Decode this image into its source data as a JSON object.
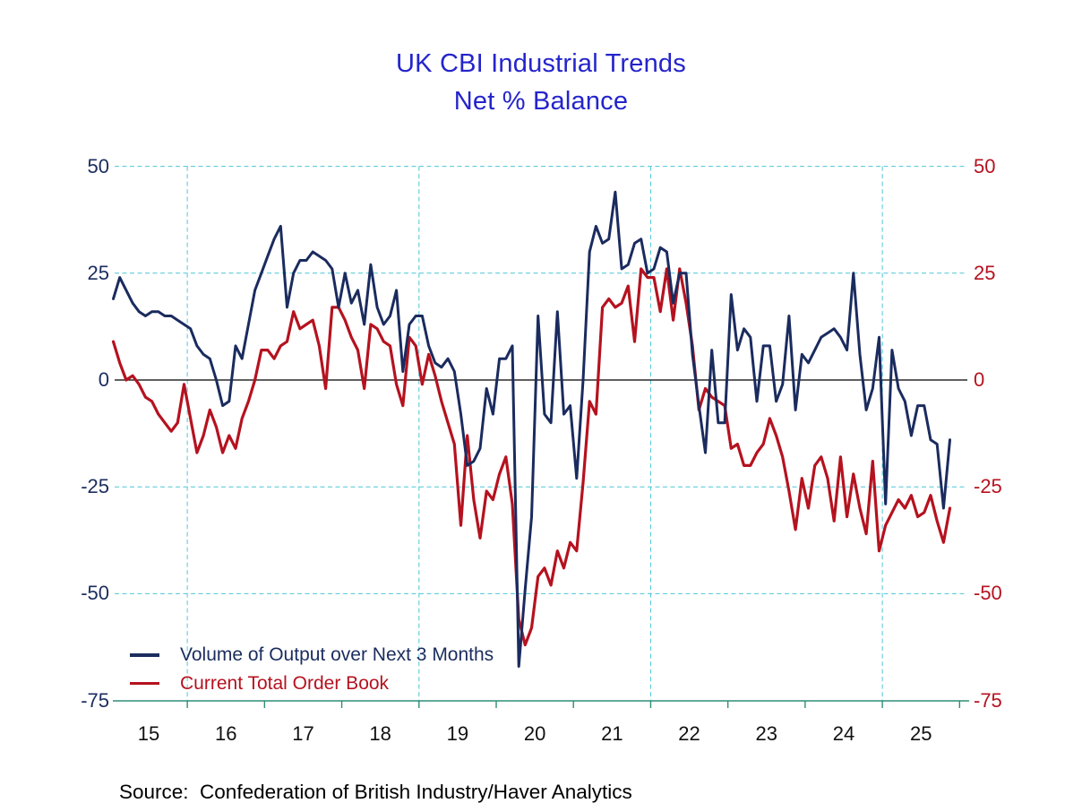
{
  "title": {
    "line1": "UK CBI Industrial Trends",
    "line2": "Net % Balance",
    "color": "#2424cc"
  },
  "source_line": "Source:  Confederation of British Industry/Haver Analytics",
  "legend": {
    "items": [
      {
        "label": "Volume of Output over Next 3 Months",
        "color": "#1b2d5e"
      },
      {
        "label": "Current Total Order Book",
        "color": "#b5121f"
      }
    ]
  },
  "chart_data": {
    "type": "line",
    "title": "UK CBI Industrial Trends",
    "subtitle": "Net % Balance",
    "frequency": "monthly",
    "x_start": "2015-01",
    "x_end": "2025-11",
    "x_tick_labels": [
      "15",
      "16",
      "17",
      "18",
      "19",
      "20",
      "21",
      "22",
      "23",
      "24",
      "25"
    ],
    "y_ticks": [
      50,
      25,
      0,
      -25,
      -50,
      -75
    ],
    "ylim": [
      -75,
      50
    ],
    "grid": {
      "h_dashed_at": [
        50,
        25,
        -25,
        -50
      ],
      "v_dashed_at_year_starts": [
        2016,
        2019,
        2022,
        2025
      ],
      "zero_line": true,
      "gridline_color": "#4ec6d8",
      "zero_line_color": "#000000",
      "baseline_color": "#2f8d77"
    },
    "axis_colors": {
      "left_labels": "#1b2d5e",
      "right_labels": "#b5121f",
      "x_labels": "#111111"
    },
    "series": [
      {
        "name": "Volume of Output over Next 3 Months",
        "color": "#1a2b5e",
        "width": 3,
        "values": [
          19,
          24,
          21,
          18,
          16,
          15,
          16,
          16,
          15,
          15,
          14,
          13,
          12,
          8,
          6,
          5,
          0,
          -6,
          -5,
          8,
          5,
          13,
          21,
          25,
          29,
          33,
          36,
          17,
          25,
          28,
          28,
          30,
          29,
          28,
          26,
          17,
          25,
          18,
          21,
          13,
          27,
          17,
          13,
          15,
          21,
          2,
          13,
          15,
          15,
          8,
          4,
          3,
          5,
          2,
          -8,
          -20,
          -19,
          -16,
          -2,
          -8,
          5,
          5,
          8,
          -67,
          -49,
          -32,
          15,
          -8,
          -10,
          16,
          -8,
          -6,
          -23,
          0,
          30,
          36,
          32,
          33,
          44,
          26,
          27,
          32,
          33,
          25,
          26,
          31,
          30,
          18,
          25,
          25,
          6,
          -6,
          -17,
          7,
          -10,
          -10,
          20,
          7,
          12,
          10,
          -5,
          8,
          8,
          -5,
          -1,
          15,
          -7,
          6,
          4,
          7,
          10,
          11,
          12,
          10,
          7,
          25,
          6,
          -7,
          -2,
          10,
          -29,
          7,
          -2,
          -5,
          -13,
          -6,
          -6,
          -14,
          -15,
          -30,
          -14
        ]
      },
      {
        "name": "Current Total Order Book",
        "color": "#b5121f",
        "width": 3.2,
        "values": [
          9,
          4,
          0,
          1,
          -1,
          -4,
          -5,
          -8,
          -10,
          -12,
          -10,
          -1,
          -9,
          -17,
          -13,
          -7,
          -11,
          -17,
          -13,
          -16,
          -9,
          -5,
          0,
          7,
          7,
          5,
          8,
          9,
          16,
          12,
          13,
          14,
          8,
          -2,
          17,
          17,
          14,
          10,
          7,
          -2,
          13,
          12,
          9,
          8,
          -1,
          -6,
          10,
          8,
          -1,
          6,
          1,
          -5,
          -10,
          -15,
          -34,
          -13,
          -28,
          -37,
          -26,
          -28,
          -22,
          -18,
          -29,
          -56,
          -62,
          -58,
          -46,
          -44,
          -48,
          -40,
          -44,
          -38,
          -40,
          -24,
          -5,
          -8,
          17,
          19,
          17,
          18,
          22,
          9,
          26,
          24,
          24,
          16,
          26,
          14,
          26,
          18,
          8,
          -7,
          -2,
          -4,
          -5,
          -6,
          -16,
          -15,
          -20,
          -20,
          -17,
          -15,
          -9,
          -13,
          -18,
          -26,
          -35,
          -23,
          -30,
          -20,
          -18,
          -23,
          -33,
          -18,
          -32,
          -22,
          -30,
          -36,
          -19,
          -40,
          -34,
          -31,
          -28,
          -30,
          -27,
          -32,
          -31,
          -27,
          -33,
          -38,
          -30
        ]
      }
    ]
  }
}
